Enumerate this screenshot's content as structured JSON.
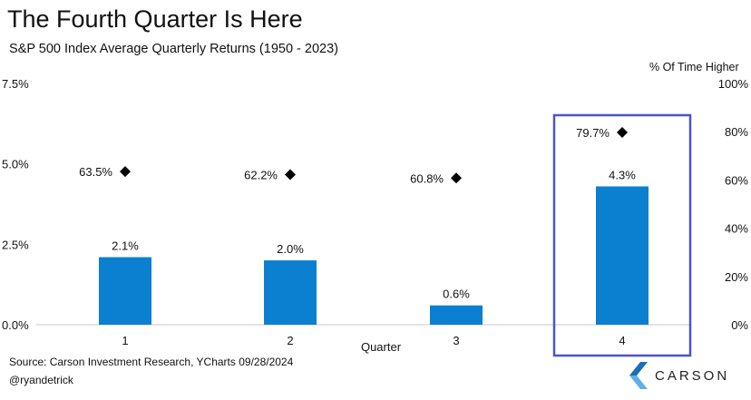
{
  "title": "The Fourth Quarter Is Here",
  "subtitle": "S&P 500 Index Average Quarterly Returns (1950 - 2023)",
  "source": "Source: Carson Investment Research, YCharts 09/28/2024",
  "handle": "@ryandetrick",
  "logo": {
    "text": "CARSON",
    "icon": "carson-chevron-icon",
    "color": "#1a6fb5"
  },
  "colors": {
    "bar": "#0b7fd0",
    "highlight_box": "#4a55c8",
    "marker": "#000000"
  },
  "chart_data": {
    "type": "bar",
    "categories": [
      "1",
      "2",
      "3",
      "4"
    ],
    "xlabel": "Quarter",
    "series": [
      {
        "values": [
          2.1,
          2.0,
          0.6,
          4.3
        ],
        "labels": [
          "2.1%",
          "2.0%",
          "0.6%",
          "4.3%"
        ],
        "axis": "left"
      },
      {
        "values": [
          63.5,
          62.2,
          60.8,
          79.7
        ],
        "labels": [
          "63.5%",
          "62.2%",
          "60.8%",
          "79.7%"
        ],
        "axis": "right",
        "marker": "diamond"
      }
    ],
    "y_left": {
      "ylim": [
        0,
        7.5
      ],
      "ticks": [
        0,
        2.5,
        5.0,
        7.5
      ],
      "tick_labels": [
        "0.0%",
        "2.5%",
        "5.0%",
        "7.5%"
      ]
    },
    "y_right": {
      "label": "% Of Time Higher",
      "ylim": [
        0,
        100
      ],
      "ticks": [
        0,
        20,
        40,
        60,
        80,
        100
      ],
      "tick_labels": [
        "0%",
        "20%",
        "40%",
        "60%",
        "80%",
        "100%"
      ]
    },
    "highlight_category": "4",
    "grid": false
  }
}
